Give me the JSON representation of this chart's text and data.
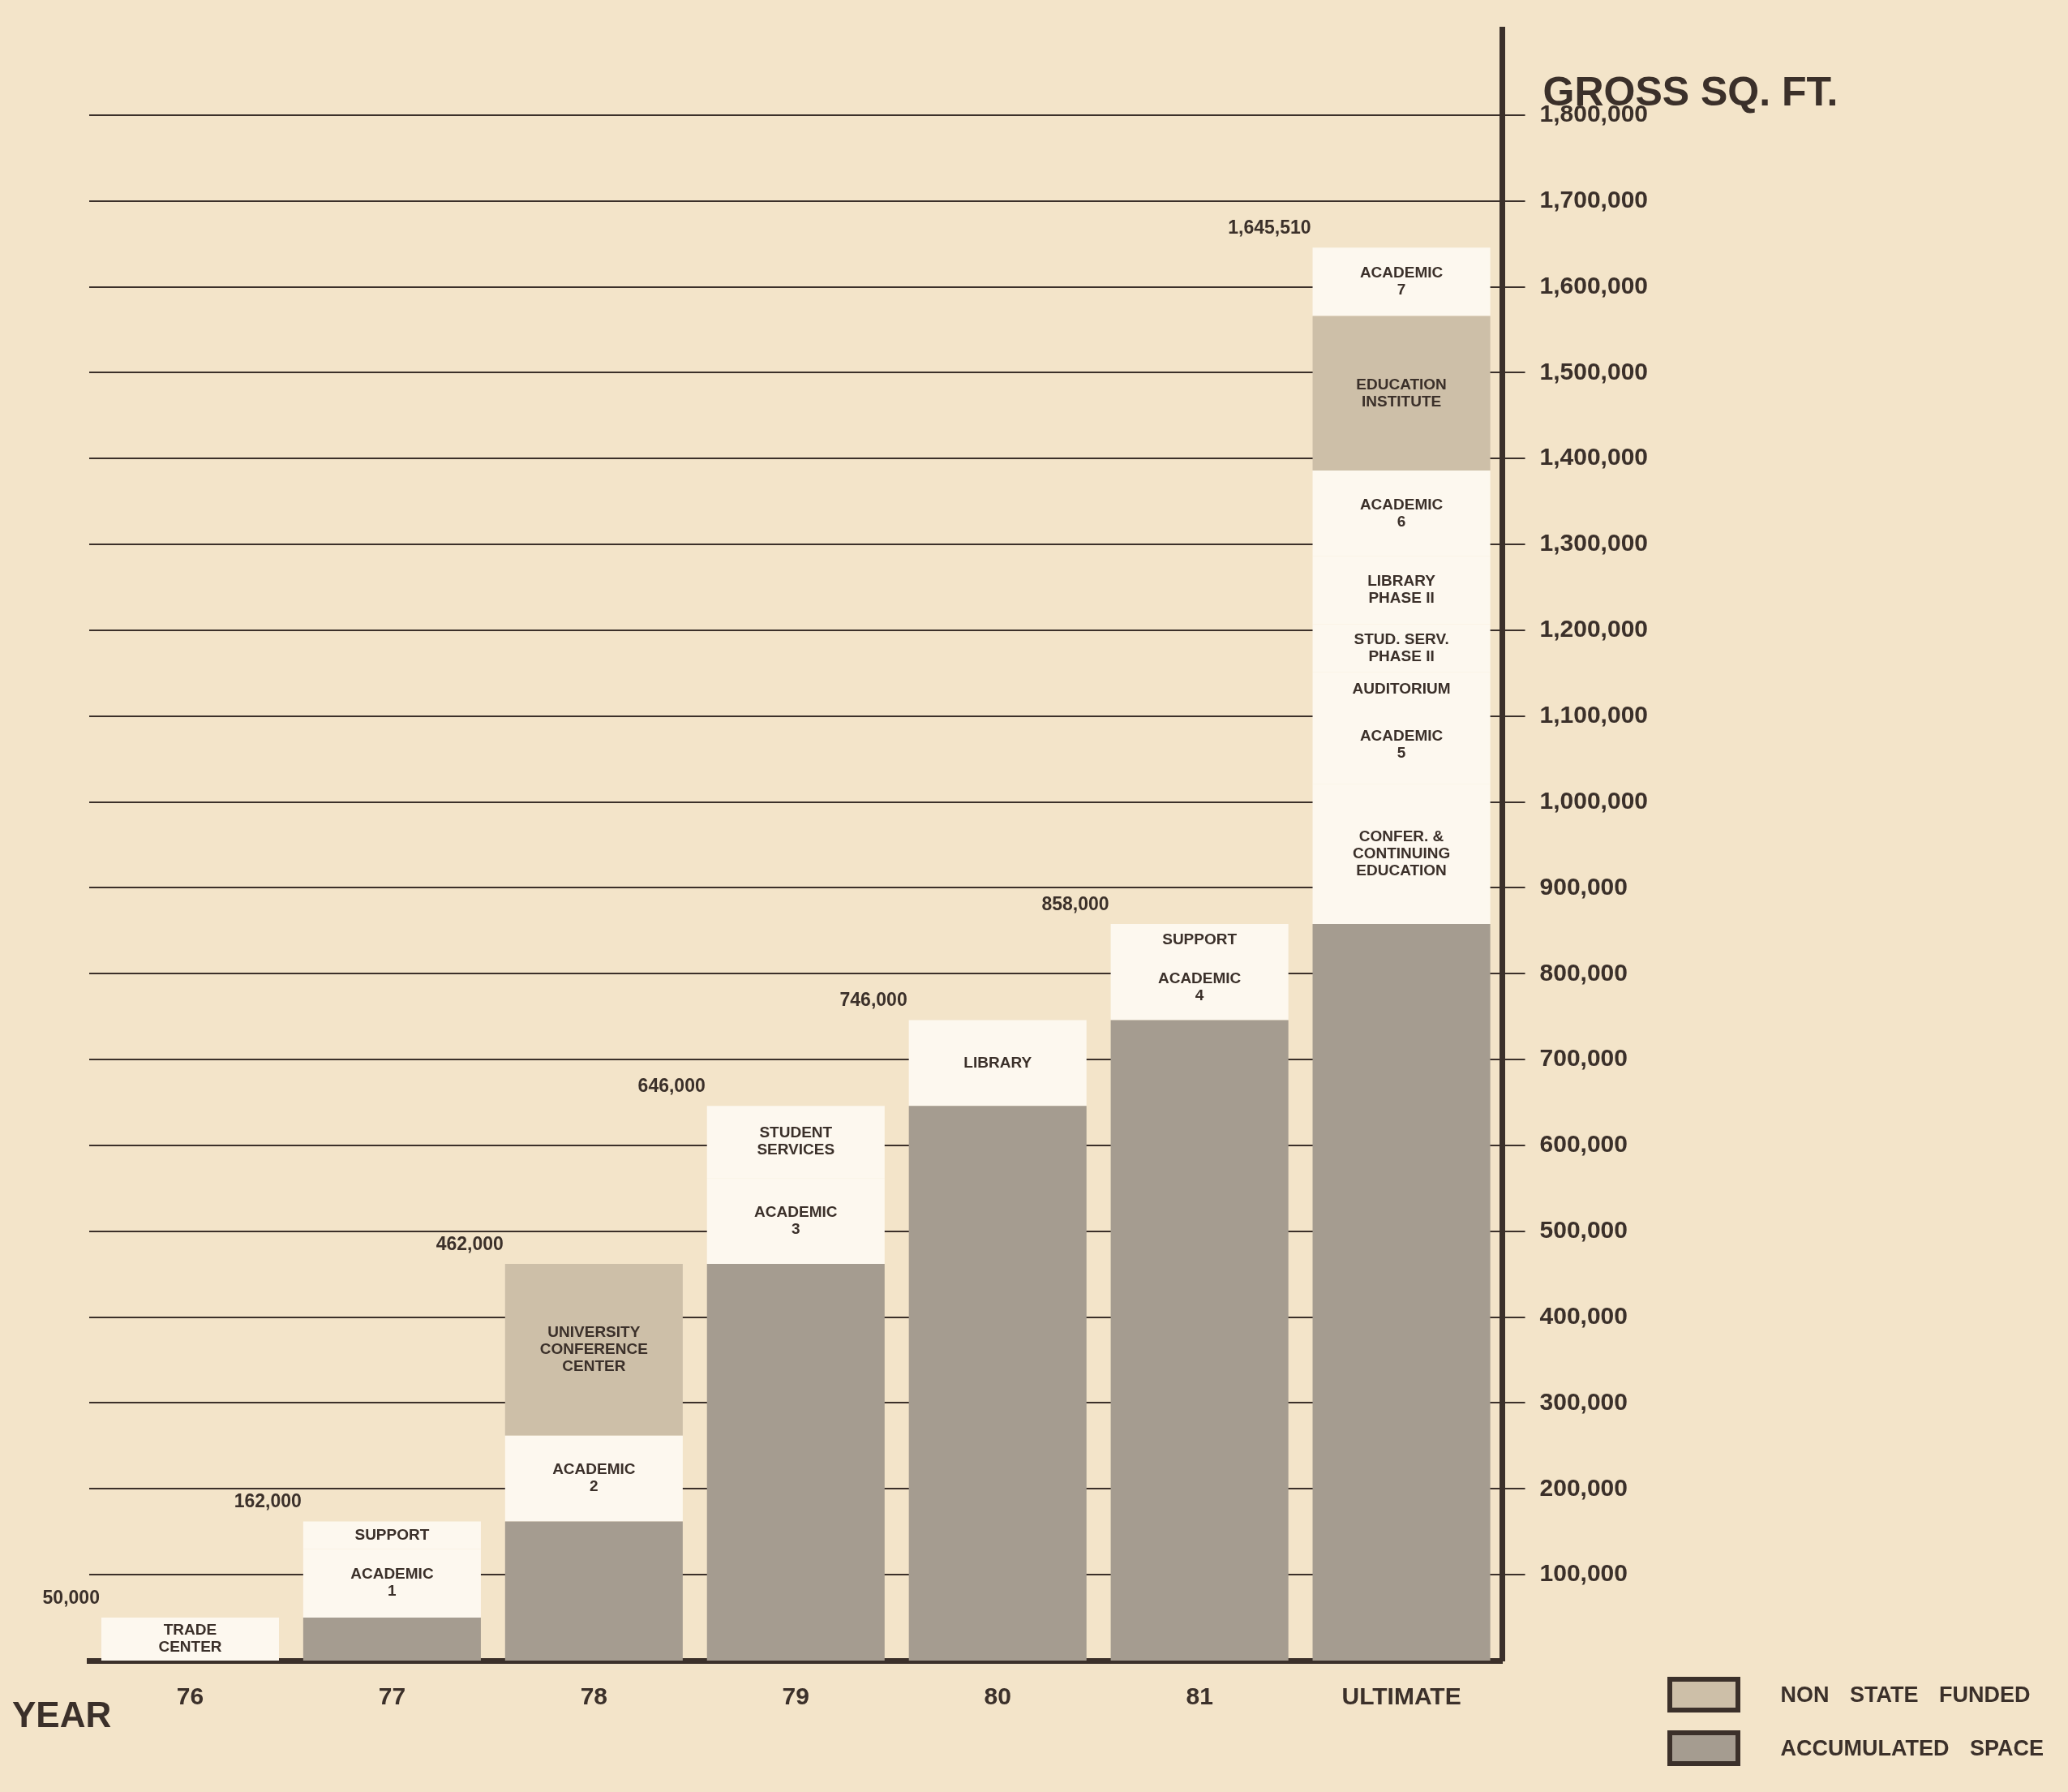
{
  "chart_data": {
    "type": "bar",
    "stacked": true,
    "xlabel": "YEAR",
    "ylabel": "GROSS SQ. FT.",
    "categories": [
      "76",
      "77",
      "78",
      "79",
      "80",
      "81",
      "ULTIMATE"
    ],
    "series": [
      {
        "name": "ACCUMULATED SPACE",
        "color": "#a59c90",
        "values": [
          null,
          50000,
          162000,
          462000,
          646000,
          746000,
          858000
        ]
      },
      {
        "color": "#fdf8ef",
        "values": [
          50000,
          80000,
          100000,
          100000,
          100000,
          75000,
          163000
        ],
        "value_labels": [
          "TRADE\nCENTER",
          "ACADEMIC\n1",
          "ACADEMIC\n2",
          "ACADEMIC\n3",
          "LIBRARY",
          "ACADEMIC\n4",
          "CONFER. &\nCONTINUING\nEDUCATION"
        ]
      },
      {
        "color": "#fdf8ef",
        "values": [
          null,
          32000,
          null,
          84000,
          null,
          37000,
          90000
        ],
        "value_labels": [
          null,
          "SUPPORT",
          null,
          "STUDENT\nSERVICES",
          null,
          "SUPPORT",
          "ACADEMIC\n5"
        ]
      },
      {
        "color": "#fdf8ef",
        "values": [
          null,
          null,
          null,
          null,
          null,
          null,
          40000
        ],
        "value_labels": [
          null,
          null,
          null,
          null,
          null,
          null,
          "AUDITORIUM"
        ]
      },
      {
        "color": "#fdf8ef",
        "values": [
          null,
          null,
          null,
          null,
          null,
          null,
          56000
        ],
        "value_labels": [
          null,
          null,
          null,
          null,
          null,
          null,
          "STUD. SERV.\nPHASE II"
        ]
      },
      {
        "color": "#fdf8ef",
        "values": [
          null,
          null,
          null,
          null,
          null,
          null,
          79000
        ],
        "value_labels": [
          null,
          null,
          null,
          null,
          null,
          null,
          "LIBRARY\nPHASE II"
        ]
      },
      {
        "color": "#fdf8ef",
        "values": [
          null,
          null,
          null,
          null,
          null,
          null,
          100000
        ],
        "value_labels": [
          null,
          null,
          null,
          null,
          null,
          null,
          "ACADEMIC\n6"
        ]
      },
      {
        "name": "NON STATE FUNDED",
        "color": "#cdbfa8",
        "values": [
          null,
          null,
          200000,
          null,
          null,
          null,
          180000
        ],
        "value_labels": [
          null,
          null,
          "UNIVERSITY\nCONFERENCE\nCENTER",
          null,
          null,
          null,
          "EDUCATION\nINSTITUTE"
        ]
      },
      {
        "color": "#fdf8ef",
        "values": [
          null,
          null,
          null,
          null,
          null,
          null,
          79510
        ],
        "value_labels": [
          null,
          null,
          null,
          null,
          null,
          null,
          "ACADEMIC\n7"
        ]
      }
    ],
    "totals": [
      "50,000",
      "162,000",
      "462,000",
      "646,000",
      "746,000",
      "858,000",
      "1,645,510"
    ],
    "ylim": [
      0,
      1900000
    ],
    "yticks": [
      {
        "value": 100000,
        "label": "100,000"
      },
      {
        "value": 200000,
        "label": "200,000"
      },
      {
        "value": 300000,
        "label": "300,000"
      },
      {
        "value": 400000,
        "label": "400,000"
      },
      {
        "value": 500000,
        "label": "500,000"
      },
      {
        "value": 600000,
        "label": "600,000"
      },
      {
        "value": 700000,
        "label": "700,000"
      },
      {
        "value": 800000,
        "label": "800,000"
      },
      {
        "value": 900000,
        "label": "900,000"
      },
      {
        "value": 1000000,
        "label": "1,000,000"
      },
      {
        "value": 1100000,
        "label": "1,100,000"
      },
      {
        "value": 1200000,
        "label": "1,200,000"
      },
      {
        "value": 1300000,
        "label": "1,300,000"
      },
      {
        "value": 1400000,
        "label": "1,400,000"
      },
      {
        "value": 1500000,
        "label": "1,500,000"
      },
      {
        "value": 1600000,
        "label": "1,600,000"
      },
      {
        "value": 1700000,
        "label": "1,700,000"
      },
      {
        "value": 1800000,
        "label": "1,800,000"
      }
    ],
    "grid": "y",
    "legend": "bottom right"
  }
}
